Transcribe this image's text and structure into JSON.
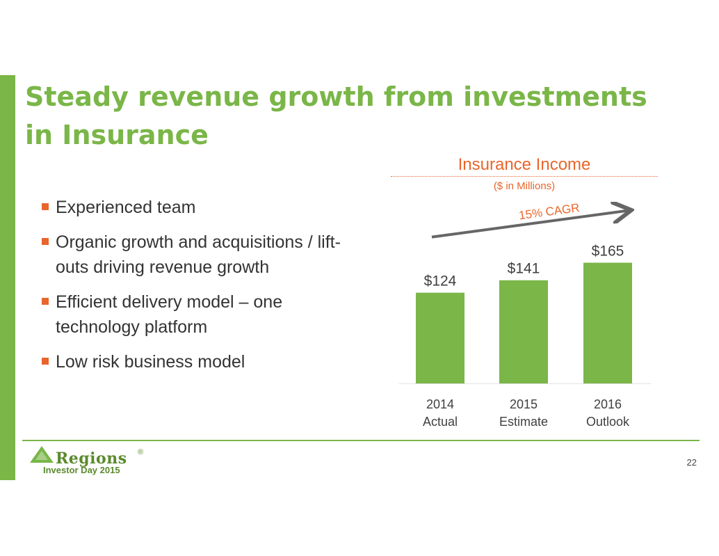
{
  "slide": {
    "title": "Steady revenue growth from investments in Insurance",
    "bullets": [
      "Experienced team",
      "Organic growth and acquisitions / lift-outs driving revenue growth",
      "Efficient delivery model – one technology platform",
      "Low risk business model"
    ],
    "page_number": "22"
  },
  "branding": {
    "logo_text": "Regions",
    "registered_mark": "®",
    "event_label": "Investor Day 2015"
  },
  "colors": {
    "brand_green": "#7ab648",
    "accent_orange": "#e8662c",
    "arrow_gray": "#666666"
  },
  "chart_data": {
    "type": "bar",
    "title": "Insurance Income",
    "subtitle": "($ in Millions)",
    "categories": [
      [
        "2014",
        "Actual"
      ],
      [
        "2015",
        "Estimate"
      ],
      [
        "2016",
        "Outlook"
      ]
    ],
    "values": [
      124,
      141,
      165
    ],
    "data_labels": [
      "$124",
      "$141",
      "$165"
    ],
    "annotation": "15% CAGR",
    "ylim": [
      0,
      175
    ],
    "grid": false,
    "legend": "none"
  }
}
